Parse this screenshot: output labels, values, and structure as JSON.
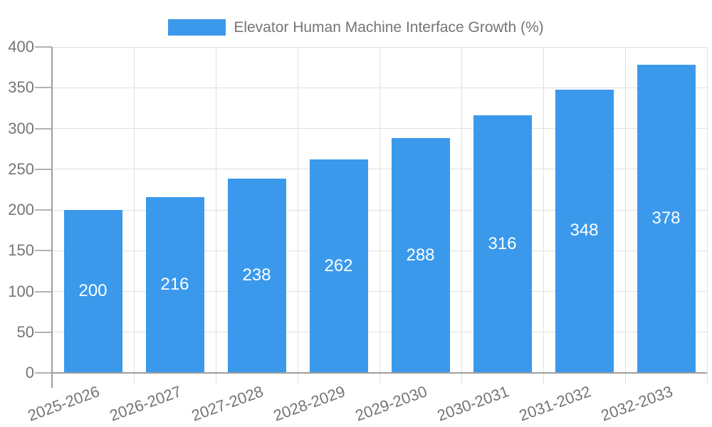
{
  "chart_data": {
    "type": "bar",
    "title": "Elevator Human Machine Interface Growth (%)",
    "categories": [
      "2025-2026",
      "2026-2027",
      "2027-2028",
      "2028-2029",
      "2029-2030",
      "2030-2031",
      "2031-2032",
      "2032-2033"
    ],
    "values": [
      200,
      216,
      238,
      262,
      288,
      316,
      348,
      378
    ],
    "value_labels": [
      "200",
      "216",
      "238",
      "262",
      "288",
      "316",
      "348",
      "378"
    ],
    "xlabel": "",
    "ylabel": "",
    "ylim": [
      0,
      400
    ],
    "y_ticks": [
      0,
      50,
      100,
      150,
      200,
      250,
      300,
      350,
      400
    ],
    "y_tick_labels": [
      "0",
      "50",
      "100",
      "150",
      "200",
      "250",
      "300",
      "350",
      "400"
    ],
    "grid": "on",
    "legend_position": "top",
    "x_label_rotation_deg": -20,
    "colors": {
      "bar": "#3B99EC",
      "bar_value_text": "#FFFFFF",
      "axis_line": "#9E9E9E",
      "gridline": "#E0E0E0",
      "tick": "#B3B3B3",
      "label_text": "#757575",
      "background": "#FFFFFF"
    }
  }
}
